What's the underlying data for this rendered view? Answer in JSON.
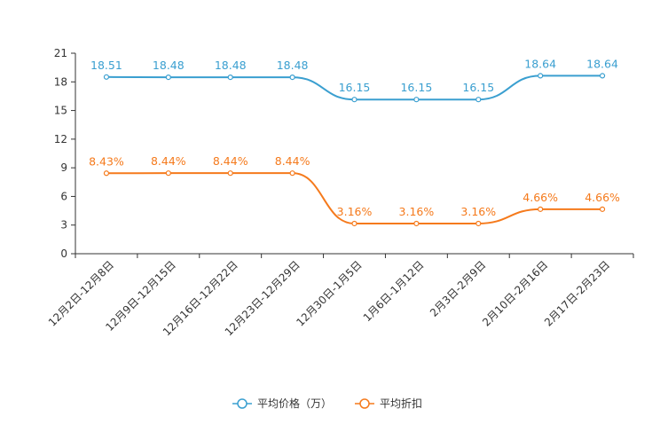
{
  "chart_data": {
    "type": "line",
    "categories": [
      "12月2日-12月8日",
      "12月9日-12月15日",
      "12月16日-12月22日",
      "12月23日-12月29日",
      "12月30日-1月5日",
      "1月6日-1月12日",
      "2月3日-2月9日",
      "2月10日-2月16日",
      "2月17日-2月23日"
    ],
    "ylim": [
      0,
      21
    ],
    "yticks": [
      0,
      3,
      6,
      9,
      12,
      15,
      18,
      21
    ],
    "series": [
      {
        "name": "平均价格（万）",
        "color": "#3a9fd0",
        "values": [
          18.51,
          18.48,
          18.48,
          18.48,
          16.15,
          16.15,
          16.15,
          18.64,
          18.64
        ],
        "labels": [
          "18.51",
          "18.48",
          "18.48",
          "18.48",
          "16.15",
          "16.15",
          "16.15",
          "18.64",
          "18.64"
        ]
      },
      {
        "name": "平均折扣",
        "color": "#f57a1c",
        "values": [
          8.43,
          8.44,
          8.44,
          8.44,
          3.16,
          3.16,
          3.16,
          4.66,
          4.66
        ],
        "labels": [
          "8.43%",
          "8.44%",
          "8.44%",
          "8.44%",
          "3.16%",
          "3.16%",
          "3.16%",
          "4.66%",
          "4.66%"
        ]
      }
    ],
    "title": "",
    "xlabel": "",
    "ylabel": "",
    "legend_position": "bottom-center"
  }
}
